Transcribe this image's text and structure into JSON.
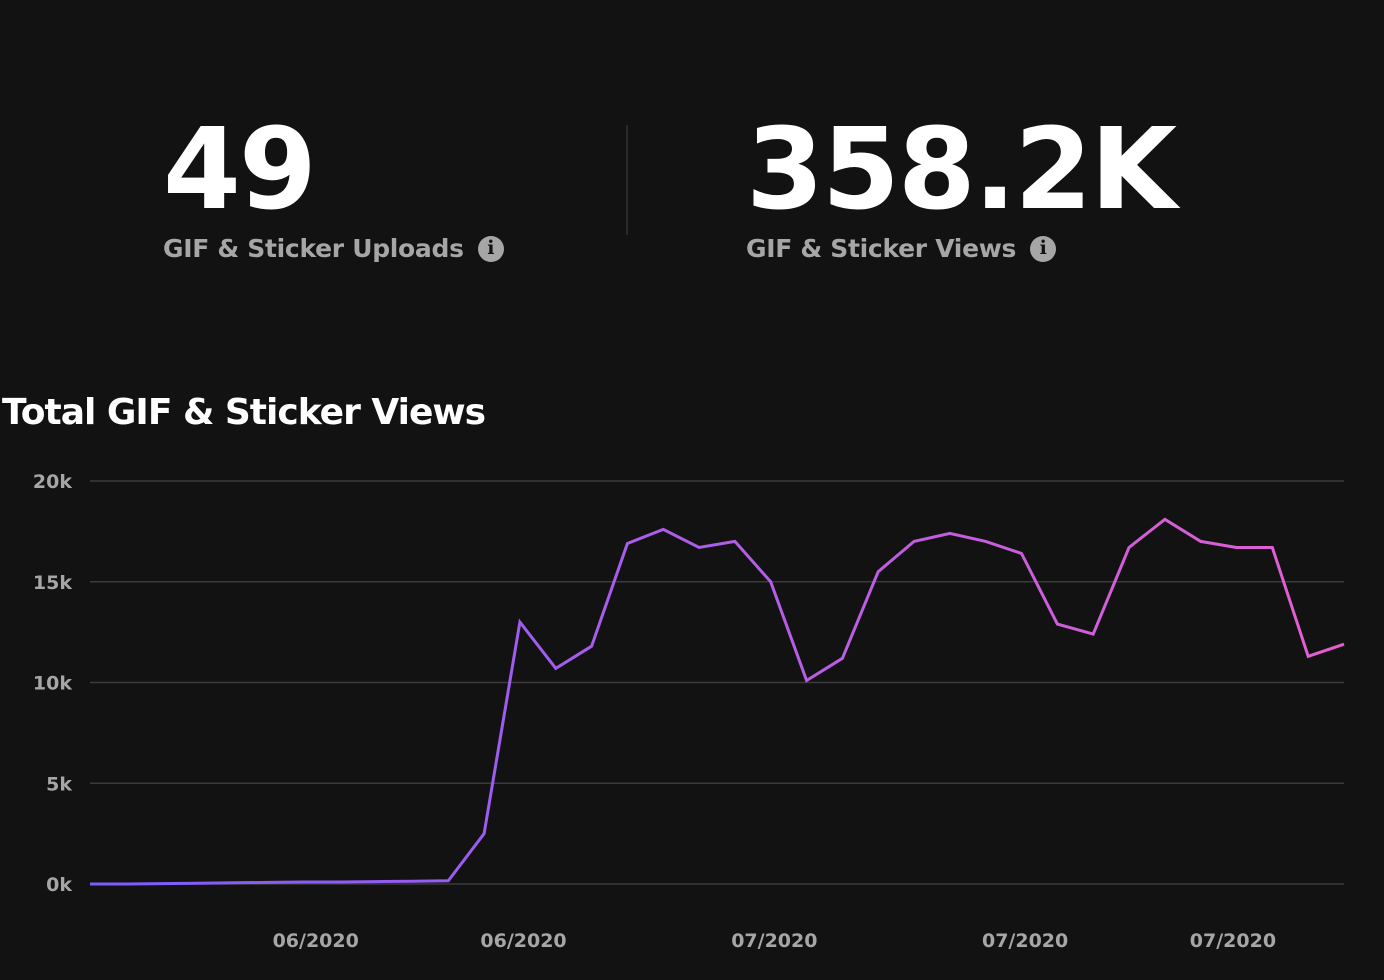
{
  "stats": {
    "uploads": {
      "value": "49",
      "label": "GIF & Sticker Uploads",
      "icon": "info-icon"
    },
    "views": {
      "value": "358.2K",
      "label": "GIF & Sticker Views",
      "icon": "info-icon"
    }
  },
  "colors": {
    "background": "#121212",
    "line_start": "#7b5cff",
    "line_end": "#e35fd0",
    "grid": "#3b3b3b",
    "muted_text": "#a6a6a6"
  },
  "chart_data": {
    "type": "line",
    "title": "Total GIF & Sticker Views",
    "ylim": [
      0,
      20000
    ],
    "yticks": [
      {
        "value": 20000,
        "label": "20k"
      },
      {
        "value": 15000,
        "label": "15k"
      },
      {
        "value": 10000,
        "label": "10k"
      },
      {
        "value": 5000,
        "label": "5k"
      },
      {
        "value": 0,
        "label": "0k"
      }
    ],
    "xticks": [
      {
        "index": 6.3,
        "label": "06/2020"
      },
      {
        "index": 12.1,
        "label": "06/2020"
      },
      {
        "index": 19.1,
        "label": "07/2020"
      },
      {
        "index": 26.1,
        "label": "07/2020"
      },
      {
        "index": 31.9,
        "label": "07/2020"
      }
    ],
    "grid": true,
    "legend": "none",
    "series": [
      {
        "values": [
          0,
          0,
          20,
          40,
          60,
          80,
          100,
          100,
          120,
          140,
          160,
          2500,
          13000,
          10700,
          11800,
          16900,
          17600,
          16700,
          17000,
          15000,
          10100,
          11200,
          15500,
          17000,
          17400,
          17000,
          16400,
          12900,
          12400,
          16700,
          18100,
          17000,
          16700,
          16700,
          11300,
          11900
        ]
      }
    ]
  }
}
